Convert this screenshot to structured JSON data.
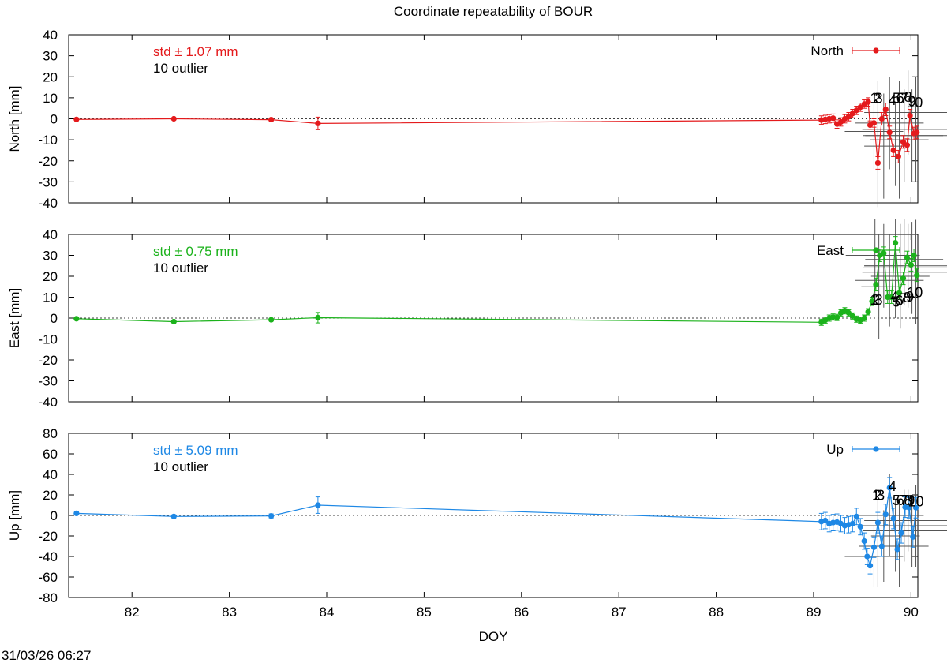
{
  "chart_data": {
    "type": "scatter",
    "title": "Coordinate repeatability of BOUR",
    "xlabel": "DOY",
    "xlim": [
      81.35,
      90.07
    ],
    "xticks": [
      82,
      83,
      84,
      85,
      86,
      87,
      88,
      89,
      90
    ],
    "timestamp": "31/03/26 06:27",
    "panels": [
      {
        "name": "North",
        "ylabel": "North [mm]",
        "ylim": [
          -40,
          40
        ],
        "yticks": [
          -40,
          -30,
          -20,
          -10,
          0,
          10,
          20,
          30,
          40
        ],
        "color": "#e41a1c",
        "std_label": "std ± 1.07 mm",
        "outlier_label": "10 outlier",
        "legend": "North",
        "points": [
          [
            81.43,
            -0.3,
            0.4
          ],
          [
            82.43,
            0.0,
            0.4
          ],
          [
            83.43,
            -0.4,
            0.6
          ],
          [
            83.91,
            -2.2,
            3.0
          ],
          [
            89.08,
            -0.6,
            2.0
          ],
          [
            89.12,
            -0.3,
            2.0
          ],
          [
            89.16,
            0.0,
            2.0
          ],
          [
            89.2,
            0.3,
            2.0
          ],
          [
            89.24,
            -2.5,
            2.0
          ],
          [
            89.28,
            -1.5,
            2.0
          ],
          [
            89.32,
            0.0,
            2.0
          ],
          [
            89.36,
            1.0,
            2.0
          ],
          [
            89.4,
            2.5,
            2.0
          ],
          [
            89.44,
            4.0,
            2.0
          ],
          [
            89.48,
            5.5,
            2.0
          ],
          [
            89.52,
            7.0,
            2.0
          ],
          [
            89.56,
            8.0,
            2.0
          ],
          [
            89.58,
            -3.0,
            2.0
          ],
          [
            89.62,
            -2.0,
            2.0
          ],
          [
            89.66,
            -21.0,
            3.0
          ],
          [
            89.7,
            0.0,
            3.0
          ],
          [
            89.74,
            4.5,
            3.0
          ],
          [
            89.78,
            -6.5,
            3.0
          ],
          [
            89.82,
            -15.0,
            3.0
          ],
          [
            89.87,
            -18.0,
            3.0
          ],
          [
            89.92,
            -11.0,
            3.0
          ],
          [
            89.96,
            -12.5,
            3.0
          ],
          [
            89.99,
            1.5,
            3.0
          ],
          [
            90.03,
            -7.0,
            3.0
          ],
          [
            90.06,
            -6.5,
            3.0
          ]
        ],
        "outliers": [
          [
            89.62,
            -6.0,
            18.0,
            0.3
          ],
          [
            89.66,
            -12.0,
            30.0,
            0.15
          ],
          [
            89.72,
            -13.0,
            25.0,
            0.2
          ],
          [
            89.78,
            -2.0,
            22.0,
            0.35
          ],
          [
            89.84,
            -12.0,
            20.0,
            0.25
          ],
          [
            89.88,
            -10.0,
            28.0,
            0.3
          ],
          [
            89.93,
            -8.0,
            22.0,
            0.4
          ],
          [
            89.97,
            3.0,
            20.0,
            0.45
          ],
          [
            90.01,
            -8.0,
            22.0,
            0.5
          ],
          [
            90.05,
            -5.0,
            25.0,
            0.55
          ]
        ],
        "outlier_ids": [
          [
            "1",
            89.62,
            7.5
          ],
          [
            "2",
            89.65,
            7.5
          ],
          [
            "3",
            89.67,
            7.5
          ],
          [
            "4",
            89.81,
            6.5
          ],
          [
            "5",
            89.85,
            7.5
          ],
          [
            "6",
            89.89,
            7.5
          ],
          [
            "7",
            89.93,
            7.5
          ],
          [
            "8",
            89.97,
            8.0
          ],
          [
            "9",
            90.01,
            6.0
          ],
          [
            "10",
            90.04,
            5.5
          ]
        ]
      },
      {
        "name": "East",
        "ylabel": "East [mm]",
        "ylim": [
          -40,
          40
        ],
        "yticks": [
          -40,
          -30,
          -20,
          -10,
          0,
          10,
          20,
          30,
          40
        ],
        "color": "#1bb21b",
        "std_label": "std ± 0.75 mm",
        "outlier_label": "10 outlier",
        "legend": "East",
        "points": [
          [
            81.43,
            -0.3,
            0.4
          ],
          [
            82.43,
            -1.7,
            0.5
          ],
          [
            83.43,
            -0.8,
            0.6
          ],
          [
            83.91,
            0.2,
            2.5
          ],
          [
            89.08,
            -2.0,
            1.5
          ],
          [
            89.12,
            -1.0,
            1.5
          ],
          [
            89.16,
            0.0,
            1.5
          ],
          [
            89.2,
            0.5,
            1.5
          ],
          [
            89.24,
            0.3,
            1.5
          ],
          [
            89.28,
            2.5,
            1.5
          ],
          [
            89.32,
            3.5,
            1.5
          ],
          [
            89.36,
            2.5,
            1.5
          ],
          [
            89.4,
            1.0,
            1.5
          ],
          [
            89.44,
            -0.5,
            1.5
          ],
          [
            89.48,
            -1.0,
            1.5
          ],
          [
            89.52,
            0.0,
            1.5
          ],
          [
            89.56,
            3.0,
            1.5
          ],
          [
            89.6,
            8.0,
            2.0
          ],
          [
            89.64,
            16.0,
            3.0
          ],
          [
            89.68,
            30.0,
            3.0
          ],
          [
            89.72,
            31.0,
            3.0
          ],
          [
            89.76,
            10.0,
            3.0
          ],
          [
            89.8,
            10.0,
            3.0
          ],
          [
            89.84,
            36.0,
            3.0
          ],
          [
            89.88,
            12.0,
            3.0
          ],
          [
            89.92,
            19.0,
            3.0
          ],
          [
            89.96,
            29.0,
            3.0
          ],
          [
            90.0,
            25.5,
            3.0
          ],
          [
            90.03,
            30.0,
            3.0
          ],
          [
            90.06,
            20.5,
            3.0
          ]
        ],
        "outliers": [
          [
            89.63,
            30.0,
            22.0,
            0.3
          ],
          [
            89.67,
            15.0,
            25.0,
            0.18
          ],
          [
            89.72,
            25.0,
            20.0,
            0.2
          ],
          [
            89.78,
            18.0,
            22.0,
            0.35
          ],
          [
            89.84,
            30.0,
            30.0,
            0.25
          ],
          [
            89.89,
            20.0,
            25.0,
            0.3
          ],
          [
            89.93,
            28.0,
            22.0,
            0.4
          ],
          [
            89.97,
            25.0,
            20.0,
            0.45
          ],
          [
            90.01,
            24.0,
            22.0,
            0.5
          ],
          [
            90.05,
            22.0,
            25.0,
            0.55
          ]
        ],
        "outlier_ids": [
          [
            "1",
            89.62,
            6.5
          ],
          [
            "2",
            89.64,
            6.5
          ],
          [
            "3",
            89.67,
            6.5
          ],
          [
            "4",
            89.83,
            8.0
          ],
          [
            "5",
            89.85,
            5.5
          ],
          [
            "6",
            89.88,
            6.0
          ],
          [
            "7",
            89.92,
            7.0
          ],
          [
            "8",
            89.96,
            7.5
          ],
          [
            "9",
            89.99,
            8.0
          ],
          [
            "10",
            90.04,
            10.0
          ]
        ]
      },
      {
        "name": "Up",
        "ylabel": "Up [mm]",
        "ylim": [
          -80,
          80
        ],
        "yticks": [
          -80,
          -60,
          -40,
          -20,
          0,
          20,
          40,
          60,
          80
        ],
        "color": "#1e88e5",
        "std_label": "std ± 5.09 mm",
        "outlier_label": "10 outlier",
        "legend": "Up",
        "points": [
          [
            81.43,
            2.0,
            1.5
          ],
          [
            82.43,
            -1.0,
            1.5
          ],
          [
            83.43,
            -0.5,
            2.0
          ],
          [
            83.91,
            10.0,
            8.0
          ],
          [
            89.08,
            -6.0,
            8.0
          ],
          [
            89.12,
            -5.0,
            8.0
          ],
          [
            89.16,
            -8.0,
            8.0
          ],
          [
            89.2,
            -7.0,
            8.0
          ],
          [
            89.24,
            -6.5,
            8.0
          ],
          [
            89.28,
            -8.0,
            8.0
          ],
          [
            89.32,
            -10.0,
            8.0
          ],
          [
            89.36,
            -9.0,
            8.0
          ],
          [
            89.4,
            -8.0,
            8.0
          ],
          [
            89.44,
            -1.0,
            8.0
          ],
          [
            89.48,
            -11.0,
            8.0
          ],
          [
            89.52,
            -25.0,
            8.0
          ],
          [
            89.55,
            -40.0,
            8.0
          ],
          [
            89.58,
            -49.0,
            8.0
          ],
          [
            89.62,
            -31.0,
            10.0
          ],
          [
            89.66,
            -7.0,
            10.0
          ],
          [
            89.7,
            -30.0,
            10.0
          ],
          [
            89.74,
            1.0,
            10.0
          ],
          [
            89.78,
            27.0,
            10.0
          ],
          [
            89.82,
            -3.0,
            10.0
          ],
          [
            89.86,
            -33.0,
            10.0
          ],
          [
            89.9,
            -17.0,
            10.0
          ],
          [
            89.94,
            8.0,
            10.0
          ],
          [
            89.98,
            7.5,
            10.0
          ],
          [
            90.02,
            -21.0,
            10.0
          ],
          [
            90.05,
            7.5,
            10.0
          ]
        ],
        "outliers": [
          [
            89.62,
            -40.0,
            30.0,
            0.3
          ],
          [
            89.66,
            -25.0,
            45.0,
            0.2
          ],
          [
            89.72,
            -30.0,
            35.0,
            0.25
          ],
          [
            89.78,
            0.0,
            40.0,
            0.35
          ],
          [
            89.84,
            -20.0,
            35.0,
            0.25
          ],
          [
            89.88,
            -30.0,
            40.0,
            0.3
          ],
          [
            89.93,
            -10.0,
            35.0,
            0.4
          ],
          [
            89.97,
            -5.0,
            30.0,
            0.45
          ],
          [
            90.01,
            -15.0,
            35.0,
            0.5
          ],
          [
            90.05,
            -10.0,
            40.0,
            0.55
          ]
        ],
        "outlier_ids": [
          [
            "1",
            89.64,
            15.0
          ],
          [
            "2",
            89.66,
            15.0
          ],
          [
            "3",
            89.69,
            15.0
          ],
          [
            "4",
            89.81,
            24.0
          ],
          [
            "5",
            89.85,
            10.0
          ],
          [
            "6",
            89.89,
            10.0
          ],
          [
            "7",
            89.93,
            10.0
          ],
          [
            "8",
            89.97,
            10.0
          ],
          [
            "9",
            90.0,
            10.0
          ],
          [
            "10",
            90.05,
            9.0
          ]
        ]
      }
    ]
  }
}
